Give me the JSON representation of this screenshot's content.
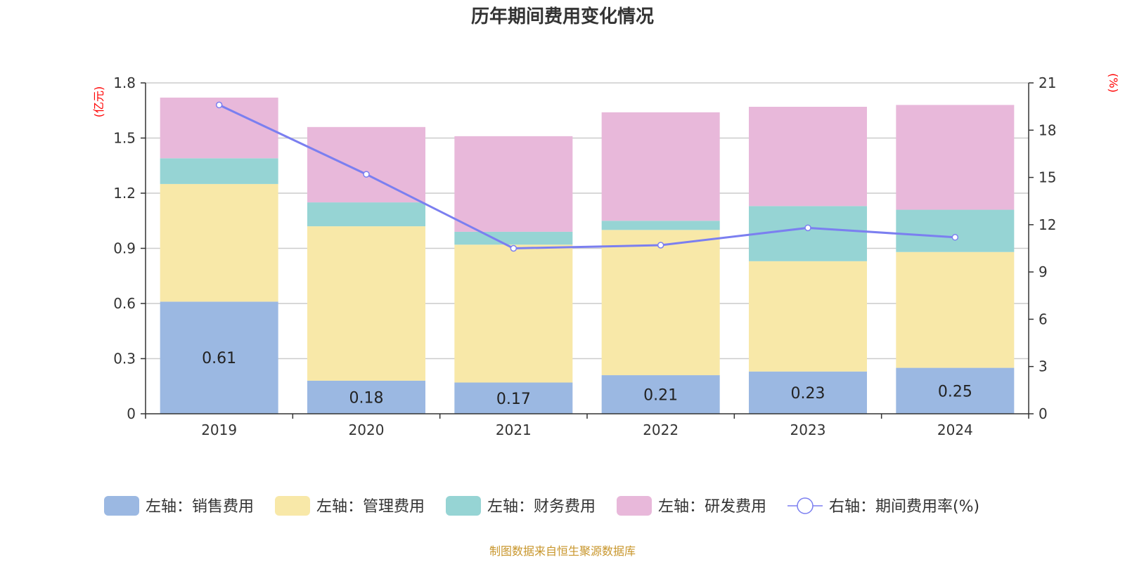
{
  "chart_data": {
    "type": "bar",
    "title": "历年期间费用变化情况",
    "categories": [
      "2019",
      "2020",
      "2021",
      "2022",
      "2023",
      "2024"
    ],
    "left_axis": {
      "unit": "(亿元)",
      "ylim": [
        0,
        1.8
      ],
      "ticks": [
        "0",
        "0.3",
        "0.6",
        "0.9",
        "1.2",
        "1.5",
        "1.8"
      ],
      "tick_values": [
        0,
        0.3,
        0.6,
        0.9,
        1.2,
        1.5,
        1.8
      ]
    },
    "right_axis": {
      "unit": "(%)",
      "ylim": [
        0,
        21
      ],
      "ticks": [
        "0",
        "3",
        "6",
        "9",
        "12",
        "15",
        "18",
        "21"
      ],
      "tick_values": [
        0,
        3,
        6,
        9,
        12,
        15,
        18,
        21
      ]
    },
    "series": [
      {
        "name": "左轴：销售费用",
        "type": "bar",
        "axis": "left",
        "color": "#9bb8e2",
        "values": [
          0.61,
          0.18,
          0.17,
          0.21,
          0.23,
          0.25
        ],
        "labels": [
          "0.61",
          "0.18",
          "0.17",
          "0.21",
          "0.23",
          "0.25"
        ]
      },
      {
        "name": "左轴：管理费用",
        "type": "bar",
        "axis": "left",
        "color": "#f8e8a8",
        "values": [
          0.64,
          0.84,
          0.75,
          0.79,
          0.6,
          0.63
        ]
      },
      {
        "name": "左轴：财务费用",
        "type": "bar",
        "axis": "left",
        "color": "#96d4d4",
        "values": [
          0.14,
          0.13,
          0.07,
          0.05,
          0.3,
          0.23
        ]
      },
      {
        "name": "左轴：研发费用",
        "type": "bar",
        "axis": "left",
        "color": "#e8b8da",
        "values": [
          0.33,
          0.41,
          0.52,
          0.59,
          0.54,
          0.57
        ]
      },
      {
        "name": "右轴：期间费用率(%)",
        "type": "line",
        "axis": "right",
        "color": "#7b7ff0",
        "values": [
          19.6,
          15.2,
          10.5,
          10.7,
          11.8,
          11.2
        ]
      }
    ],
    "source": "制图数据来自恒生聚源数据库"
  }
}
